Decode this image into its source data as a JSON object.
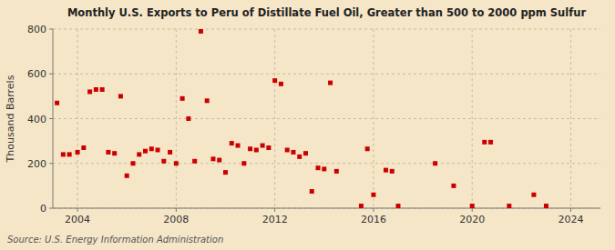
{
  "chart_data": {
    "type": "scatter",
    "title": "Monthly U.S. Exports to Peru of Distillate Fuel Oil, Greater than 500 to 2000 ppm Sulfur",
    "y_label": "Thousand Barrels",
    "annotations": [
      "Source: U.S. Energy Information Administration"
    ],
    "color": "#cc0000",
    "marker": "square",
    "grid": true,
    "xlim": [
      2003.0,
      2025.2
    ],
    "ylim": [
      0,
      800
    ],
    "xticks": [
      2004,
      2008,
      2012,
      2016,
      2020,
      2024
    ],
    "yticks": [
      0,
      200,
      400,
      600,
      800
    ],
    "x": [
      2003.17,
      2003.42,
      2003.67,
      2004.0,
      2004.25,
      2004.5,
      2004.75,
      2005.0,
      2005.25,
      2005.5,
      2005.75,
      2006.0,
      2006.25,
      2006.5,
      2006.75,
      2007.0,
      2007.25,
      2007.5,
      2007.75,
      2008.0,
      2008.25,
      2008.5,
      2008.75,
      2009.0,
      2009.25,
      2009.5,
      2009.75,
      2010.0,
      2010.25,
      2010.5,
      2010.75,
      2011.0,
      2011.25,
      2011.5,
      2011.75,
      2012.0,
      2012.25,
      2012.5,
      2012.75,
      2013.0,
      2013.25,
      2013.5,
      2013.75,
      2014.0,
      2014.25,
      2014.5,
      2015.5,
      2015.75,
      2016.0,
      2016.5,
      2016.75,
      2017.0,
      2018.5,
      2019.25,
      2020.0,
      2020.5,
      2020.75,
      2021.5,
      2022.5,
      2023.0
    ],
    "values": [
      470,
      240,
      240,
      250,
      270,
      520,
      530,
      530,
      250,
      245,
      500,
      145,
      200,
      240,
      255,
      265,
      260,
      210,
      250,
      200,
      490,
      400,
      210,
      790,
      480,
      220,
      215,
      160,
      290,
      280,
      200,
      265,
      260,
      280,
      270,
      570,
      555,
      260,
      250,
      230,
      245,
      75,
      180,
      175,
      560,
      165,
      10,
      265,
      60,
      170,
      165,
      10,
      200,
      100,
      10,
      295,
      295,
      10,
      60,
      10
    ]
  }
}
